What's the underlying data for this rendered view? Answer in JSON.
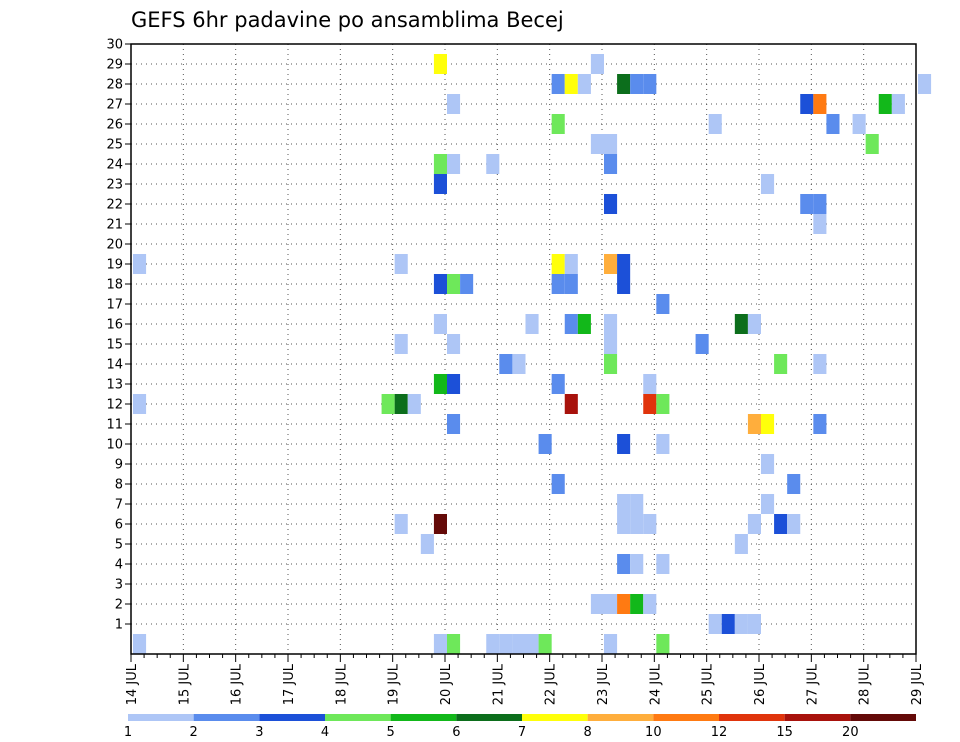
{
  "chart_data": {
    "type": "heatmap",
    "title": "GEFS 6hr padavine po ansamblima Becej",
    "x_tick_labels": [
      "14 JUL",
      "15 JUL",
      "16 JUL",
      "17 JUL",
      "18 JUL",
      "19 JUL",
      "20 JUL",
      "21 JUL",
      "22 JUL",
      "23 JUL",
      "24 JUL",
      "25 JUL",
      "26 JUL",
      "27 JUL",
      "28 JUL",
      "29 JUL"
    ],
    "y_tick_labels": [
      "1",
      "2",
      "3",
      "4",
      "5",
      "6",
      "7",
      "8",
      "9",
      "10",
      "11",
      "12",
      "13",
      "14",
      "15",
      "16",
      "17",
      "18",
      "19",
      "20",
      "21",
      "22",
      "23",
      "24",
      "25",
      "26",
      "27",
      "28",
      "29",
      "30"
    ],
    "xlim": [
      0,
      60
    ],
    "ylim": [
      0,
      30
    ],
    "x_step_label": "6hr",
    "legend": {
      "position": "bottom",
      "bins": [
        {
          "label": "1",
          "color": "#aec6f6"
        },
        {
          "label": "2",
          "color": "#5a8ced"
        },
        {
          "label": "3",
          "color": "#1c50d8"
        },
        {
          "label": "4",
          "color": "#6ee85a"
        },
        {
          "label": "5",
          "color": "#12b81a"
        },
        {
          "label": "6",
          "color": "#0c6e1c"
        },
        {
          "label": "7",
          "color": "#ffff0a"
        },
        {
          "label": "8",
          "color": "#ffae3c"
        },
        {
          "label": "10",
          "color": "#ff7a12"
        },
        {
          "label": "12",
          "color": "#e0340c"
        },
        {
          "label": "15",
          "color": "#a8120c"
        },
        {
          "label": "20",
          "color": "#640a08"
        }
      ]
    },
    "cells": [
      [
        0,
        0,
        0
      ],
      [
        23,
        0,
        0
      ],
      [
        24,
        0,
        3
      ],
      [
        27,
        0,
        0
      ],
      [
        28,
        0,
        0
      ],
      [
        29,
        0,
        0
      ],
      [
        30,
        0,
        0
      ],
      [
        31,
        0,
        3
      ],
      [
        36,
        0,
        0
      ],
      [
        40,
        0,
        3
      ],
      [
        44,
        1,
        0
      ],
      [
        45,
        1,
        2
      ],
      [
        46,
        1,
        0
      ],
      [
        47,
        1,
        0
      ],
      [
        35,
        2,
        0
      ],
      [
        36,
        2,
        0
      ],
      [
        37,
        2,
        8
      ],
      [
        38,
        2,
        4
      ],
      [
        39,
        2,
        0
      ],
      [
        37,
        4,
        1
      ],
      [
        38,
        4,
        0
      ],
      [
        40,
        4,
        0
      ],
      [
        22,
        5,
        0
      ],
      [
        46,
        5,
        0
      ],
      [
        20,
        6,
        0
      ],
      [
        23,
        6,
        11
      ],
      [
        37,
        6,
        0
      ],
      [
        38,
        6,
        0
      ],
      [
        39,
        6,
        0
      ],
      [
        47,
        6,
        0
      ],
      [
        49,
        6,
        2
      ],
      [
        50,
        6,
        0
      ],
      [
        37,
        7,
        0
      ],
      [
        38,
        7,
        0
      ],
      [
        48,
        7,
        0
      ],
      [
        32,
        8,
        1
      ],
      [
        50,
        8,
        1
      ],
      [
        48,
        9,
        0
      ],
      [
        31,
        10,
        1
      ],
      [
        37,
        10,
        2
      ],
      [
        40,
        10,
        0
      ],
      [
        24,
        11,
        1
      ],
      [
        47,
        11,
        7
      ],
      [
        48,
        11,
        6
      ],
      [
        52,
        11,
        1
      ],
      [
        0,
        12,
        0
      ],
      [
        19,
        12,
        3
      ],
      [
        20,
        12,
        5
      ],
      [
        21,
        12,
        0
      ],
      [
        33,
        12,
        10
      ],
      [
        39,
        12,
        9
      ],
      [
        40,
        12,
        3
      ],
      [
        23,
        13,
        4
      ],
      [
        24,
        13,
        2
      ],
      [
        32,
        13,
        1
      ],
      [
        39,
        13,
        0
      ],
      [
        28,
        14,
        1
      ],
      [
        29,
        14,
        0
      ],
      [
        36,
        14,
        3
      ],
      [
        49,
        14,
        3
      ],
      [
        52,
        14,
        0
      ],
      [
        20,
        15,
        0
      ],
      [
        24,
        15,
        0
      ],
      [
        36,
        15,
        0
      ],
      [
        43,
        15,
        1
      ],
      [
        23,
        16,
        0
      ],
      [
        30,
        16,
        0
      ],
      [
        33,
        16,
        1
      ],
      [
        34,
        16,
        4
      ],
      [
        36,
        16,
        0
      ],
      [
        46,
        16,
        5
      ],
      [
        47,
        16,
        0
      ],
      [
        40,
        17,
        1
      ],
      [
        23,
        18,
        2
      ],
      [
        24,
        18,
        3
      ],
      [
        25,
        18,
        1
      ],
      [
        32,
        18,
        1
      ],
      [
        33,
        18,
        1
      ],
      [
        37,
        18,
        2
      ],
      [
        0,
        19,
        0
      ],
      [
        20,
        19,
        0
      ],
      [
        32,
        19,
        6
      ],
      [
        33,
        19,
        0
      ],
      [
        36,
        19,
        7
      ],
      [
        37,
        19,
        2
      ],
      [
        52,
        21,
        0
      ],
      [
        36,
        22,
        2
      ],
      [
        51,
        22,
        1
      ],
      [
        52,
        22,
        1
      ],
      [
        23,
        23,
        2
      ],
      [
        48,
        23,
        0
      ],
      [
        23,
        24,
        3
      ],
      [
        24,
        24,
        0
      ],
      [
        27,
        24,
        0
      ],
      [
        36,
        24,
        1
      ],
      [
        35,
        25,
        0
      ],
      [
        36,
        25,
        0
      ],
      [
        56,
        25,
        3
      ],
      [
        32,
        26,
        3
      ],
      [
        44,
        26,
        0
      ],
      [
        53,
        26,
        1
      ],
      [
        55,
        26,
        0
      ],
      [
        24,
        27,
        0
      ],
      [
        51,
        27,
        2
      ],
      [
        52,
        27,
        8
      ],
      [
        57,
        27,
        4
      ],
      [
        58,
        27,
        0
      ],
      [
        32,
        28,
        1
      ],
      [
        33,
        28,
        6
      ],
      [
        34,
        28,
        0
      ],
      [
        37,
        28,
        5
      ],
      [
        38,
        28,
        1
      ],
      [
        39,
        28,
        1
      ],
      [
        60,
        28,
        0
      ],
      [
        35,
        29,
        0
      ],
      [
        23,
        29,
        6
      ]
    ]
  }
}
